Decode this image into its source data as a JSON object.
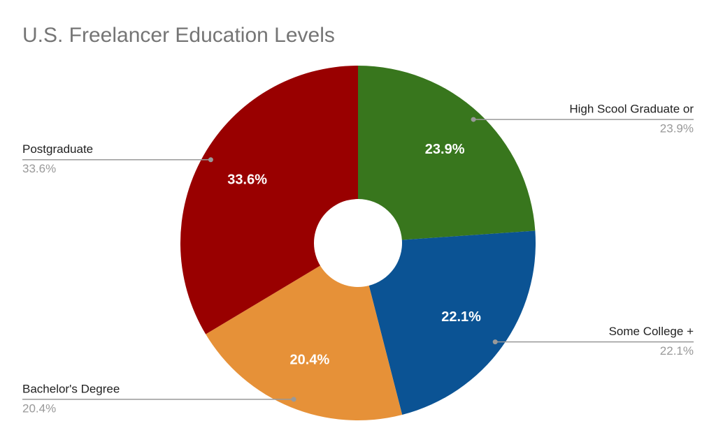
{
  "chart_data": {
    "type": "pie",
    "title": "U.S. Freelancer Education Levels",
    "categories": [
      "High Scool Graduate or",
      "Some College +",
      "Bachelor's Degree",
      "Postgraduate"
    ],
    "values": [
      23.9,
      22.1,
      20.4,
      33.6
    ],
    "value_labels": [
      "23.9%",
      "22.1%",
      "20.4%",
      "33.6%"
    ],
    "colors": [
      "#38761d",
      "#0b5394",
      "#e69138",
      "#990000"
    ]
  }
}
